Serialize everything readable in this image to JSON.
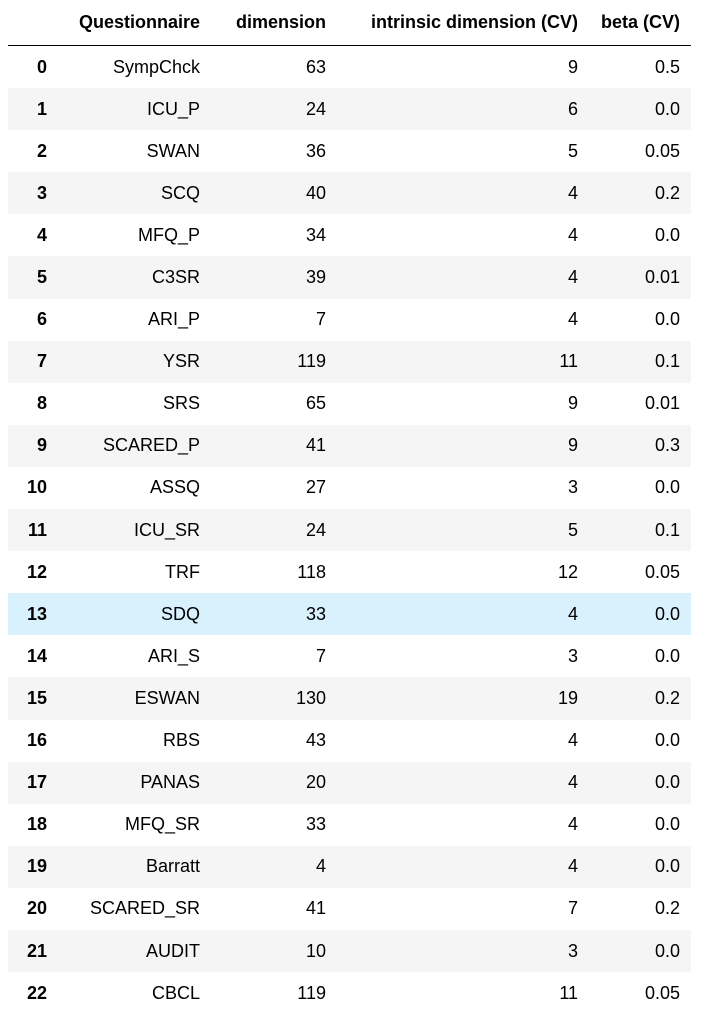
{
  "table": {
    "columns": [
      "",
      "Questionnaire",
      "dimension",
      "intrinsic dimension (CV)",
      "beta (CV)"
    ],
    "rows": [
      {
        "index": "0",
        "questionnaire": "SympChck",
        "dimension": "63",
        "intrinsic": "9",
        "beta": "0.5"
      },
      {
        "index": "1",
        "questionnaire": "ICU_P",
        "dimension": "24",
        "intrinsic": "6",
        "beta": "0.0"
      },
      {
        "index": "2",
        "questionnaire": "SWAN",
        "dimension": "36",
        "intrinsic": "5",
        "beta": "0.05"
      },
      {
        "index": "3",
        "questionnaire": "SCQ",
        "dimension": "40",
        "intrinsic": "4",
        "beta": "0.2"
      },
      {
        "index": "4",
        "questionnaire": "MFQ_P",
        "dimension": "34",
        "intrinsic": "4",
        "beta": "0.0"
      },
      {
        "index": "5",
        "questionnaire": "C3SR",
        "dimension": "39",
        "intrinsic": "4",
        "beta": "0.01"
      },
      {
        "index": "6",
        "questionnaire": "ARI_P",
        "dimension": "7",
        "intrinsic": "4",
        "beta": "0.0"
      },
      {
        "index": "7",
        "questionnaire": "YSR",
        "dimension": "119",
        "intrinsic": "11",
        "beta": "0.1"
      },
      {
        "index": "8",
        "questionnaire": "SRS",
        "dimension": "65",
        "intrinsic": "9",
        "beta": "0.01"
      },
      {
        "index": "9",
        "questionnaire": "SCARED_P",
        "dimension": "41",
        "intrinsic": "9",
        "beta": "0.3"
      },
      {
        "index": "10",
        "questionnaire": "ASSQ",
        "dimension": "27",
        "intrinsic": "3",
        "beta": "0.0"
      },
      {
        "index": "11",
        "questionnaire": "ICU_SR",
        "dimension": "24",
        "intrinsic": "5",
        "beta": "0.1"
      },
      {
        "index": "12",
        "questionnaire": "TRF",
        "dimension": "118",
        "intrinsic": "12",
        "beta": "0.05"
      },
      {
        "index": "13",
        "questionnaire": "SDQ",
        "dimension": "33",
        "intrinsic": "4",
        "beta": "0.0"
      },
      {
        "index": "14",
        "questionnaire": "ARI_S",
        "dimension": "7",
        "intrinsic": "3",
        "beta": "0.0"
      },
      {
        "index": "15",
        "questionnaire": "ESWAN",
        "dimension": "130",
        "intrinsic": "19",
        "beta": "0.2"
      },
      {
        "index": "16",
        "questionnaire": "RBS",
        "dimension": "43",
        "intrinsic": "4",
        "beta": "0.0"
      },
      {
        "index": "17",
        "questionnaire": "PANAS",
        "dimension": "20",
        "intrinsic": "4",
        "beta": "0.0"
      },
      {
        "index": "18",
        "questionnaire": "MFQ_SR",
        "dimension": "33",
        "intrinsic": "4",
        "beta": "0.0"
      },
      {
        "index": "19",
        "questionnaire": "Barratt",
        "dimension": "4",
        "intrinsic": "4",
        "beta": "0.0"
      },
      {
        "index": "20",
        "questionnaire": "SCARED_SR",
        "dimension": "41",
        "intrinsic": "7",
        "beta": "0.2"
      },
      {
        "index": "21",
        "questionnaire": "AUDIT",
        "dimension": "10",
        "intrinsic": "3",
        "beta": "0.0"
      },
      {
        "index": "22",
        "questionnaire": "CBCL",
        "dimension": "119",
        "intrinsic": "11",
        "beta": "0.05"
      }
    ],
    "highlighted_row": 13,
    "colors": {
      "stripe": "#f5f5f5",
      "hover": "#d9f0fd"
    }
  }
}
